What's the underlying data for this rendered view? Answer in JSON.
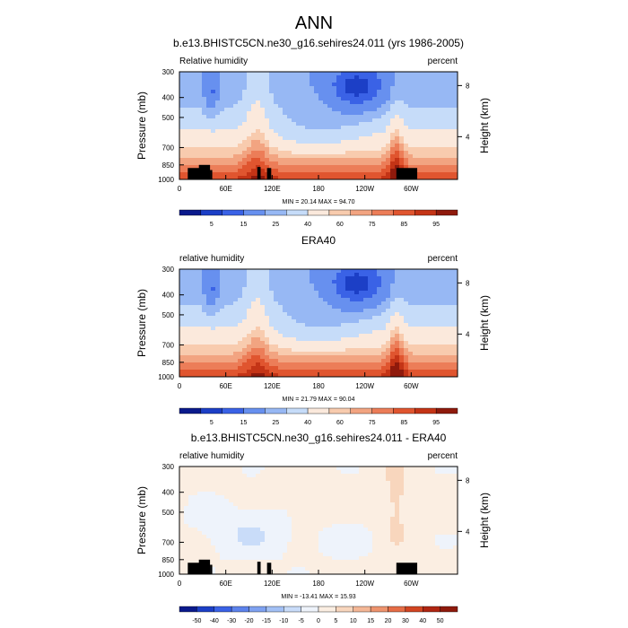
{
  "figure": {
    "main_title": "ANN",
    "colors": {
      "rh_scale": [
        "#0a1a8c",
        "#1c3fc6",
        "#3a62e6",
        "#6790ef",
        "#97b8f4",
        "#c6dcf9",
        "#fbe9dc",
        "#f8cbae",
        "#f2a481",
        "#ec7d58",
        "#e0552f",
        "#c43416",
        "#8f1a0c"
      ],
      "diff_scale": [
        "#0a1a8c",
        "#1c3fc6",
        "#3a62e6",
        "#5d83ec",
        "#7fa2f1",
        "#a3c0f5",
        "#c9dcf9",
        "#eef3fb",
        "#fbeee2",
        "#f8d6bd",
        "#f4b796",
        "#ee946e",
        "#e66d46",
        "#d24522",
        "#b02612",
        "#8f1a0c"
      ],
      "topography": "#000000"
    }
  },
  "chart_data": [
    {
      "type": "heatmap",
      "title": "b.e13.BHISTC5CN.ne30_g16.sehires24.011 (yrs 1986-2005)",
      "left_label": "Relative humidity",
      "right_label": "percent",
      "ylabel": "Pressure (mb)",
      "y2label": "Height (km)",
      "xticks": [
        "0",
        "60E",
        "120E",
        "180",
        "120W",
        "60W"
      ],
      "yticks": [
        "300",
        "400",
        "500",
        "700",
        "850",
        "1000"
      ],
      "y2ticks": [
        "8",
        "4"
      ],
      "stats": "MIN = 20.14  MAX = 94.70",
      "colorbar_labels": [
        "5",
        "15",
        "25",
        "40",
        "60",
        "75",
        "85",
        "95"
      ],
      "x_range": [
        0,
        360
      ],
      "y_range": [
        1000,
        300
      ],
      "y_scale": "log",
      "z_range": [
        20.14,
        94.7
      ],
      "topography": true,
      "field": "relative humidity, annual zonal/meridional cross-section"
    },
    {
      "type": "heatmap",
      "title": "ERA40",
      "left_label": "relative humidity",
      "right_label": "percent",
      "ylabel": "Pressure (mb)",
      "y2label": "Height (km)",
      "xticks": [
        "0",
        "60E",
        "120E",
        "180",
        "120W",
        "60W"
      ],
      "yticks": [
        "300",
        "400",
        "500",
        "700",
        "850",
        "1000"
      ],
      "y2ticks": [
        "8",
        "4"
      ],
      "stats": "MIN = 21.79  MAX = 90.04",
      "colorbar_labels": [
        "5",
        "15",
        "25",
        "40",
        "60",
        "75",
        "85",
        "95"
      ],
      "x_range": [
        0,
        360
      ],
      "y_range": [
        1000,
        300
      ],
      "y_scale": "log",
      "z_range": [
        21.79,
        90.04
      ],
      "topography": false
    },
    {
      "type": "heatmap",
      "title": "b.e13.BHISTC5CN.ne30_g16.sehires24.011 - ERA40",
      "left_label": "relative humidity",
      "right_label": "percent",
      "ylabel": "Pressure (mb)",
      "y2label": "Height (km)",
      "xticks": [
        "0",
        "60E",
        "120E",
        "180",
        "120W",
        "60W"
      ],
      "yticks": [
        "300",
        "400",
        "500",
        "700",
        "850",
        "1000"
      ],
      "y2ticks": [
        "8",
        "4"
      ],
      "stats": "MIN = -13.41  MAX = 15.93",
      "colorbar_labels": [
        "-50",
        "-40",
        "-30",
        "-20",
        "-15",
        "-10",
        "-5",
        "0",
        "5",
        "10",
        "15",
        "20",
        "30",
        "40",
        "50"
      ],
      "x_range": [
        0,
        360
      ],
      "y_range": [
        1000,
        300
      ],
      "y_scale": "log",
      "z_range": [
        -13.41,
        15.93
      ],
      "topography": true
    }
  ]
}
